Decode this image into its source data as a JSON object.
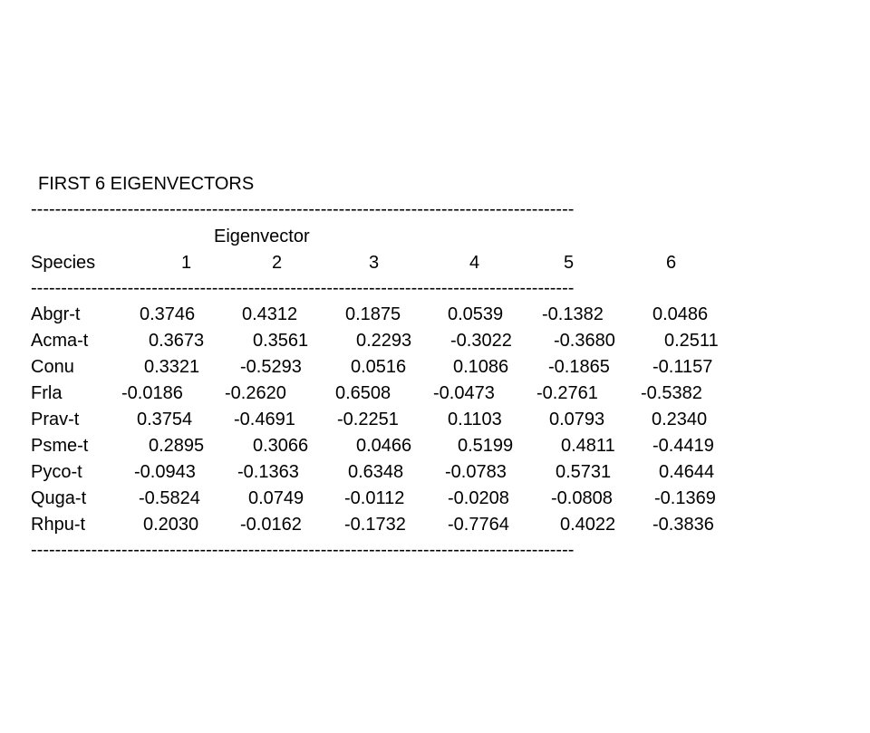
{
  "title": "FIRST 6 EIGENVECTORS",
  "separator": "------------------------------------------------------------------------------------------",
  "group_header": "Eigenvector",
  "column_header": {
    "species": "Species",
    "columns": [
      "1",
      "2",
      "3",
      "4",
      "5",
      "6"
    ]
  },
  "rows": [
    {
      "species": "Abgr-t",
      "values": [
        "0.3746",
        "0.4312",
        "0.1875",
        "0.0539",
        "-0.1382",
        "0.0486"
      ]
    },
    {
      "species": "Acma-t",
      "values": [
        "0.3673",
        "0.3561",
        "0.2293",
        "-0.3022",
        "-0.3680",
        "0.2511"
      ]
    },
    {
      "species": "Conu",
      "values": [
        "0.3321",
        "-0.5293",
        "0.0516",
        "0.1086",
        "-0.1865",
        "-0.1157"
      ]
    },
    {
      "species": "Frla",
      "values": [
        "-0.0186",
        "-0.2620",
        "0.6508",
        "-0.0473",
        "-0.2761",
        "-0.5382"
      ]
    },
    {
      "species": "Prav-t",
      "values": [
        "0.3754",
        "-0.4691",
        "-0.2251",
        "0.1103",
        "0.0793",
        "0.2340"
      ]
    },
    {
      "species": "Psme-t",
      "values": [
        "0.2895",
        "0.3066",
        "0.0466",
        "0.5199",
        "0.4811",
        "-0.4419"
      ]
    },
    {
      "species": "Pyco-t",
      "values": [
        "-0.0943",
        "-0.1363",
        "0.6348",
        "-0.0783",
        "0.5731",
        "0.4644"
      ]
    },
    {
      "species": "Quga-t",
      "values": [
        "-0.5824",
        "0.0749",
        "-0.0112",
        "-0.0208",
        "-0.0808",
        "-0.1369"
      ]
    },
    {
      "species": "Rhpu-t",
      "values": [
        "0.2030",
        "-0.0162",
        "-0.1732",
        "-0.7764",
        "0.4022",
        "-0.3836"
      ]
    }
  ]
}
